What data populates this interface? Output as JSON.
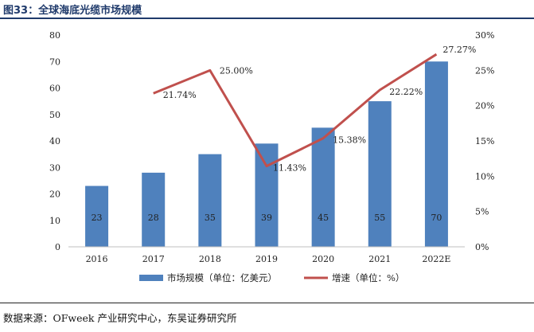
{
  "figure_title": "图33：全球海底光缆市场规模",
  "source": "数据来源：OFweek 产业研究中心，东吴证券研究所",
  "colors": {
    "bar": "#4F81BD",
    "line": "#C0504D",
    "title": "#1f3a6b"
  },
  "chart_data": {
    "type": "bar",
    "categories": [
      "2016",
      "2017",
      "2018",
      "2019",
      "2020",
      "2021",
      "2022E"
    ],
    "series": [
      {
        "name": "市场规模（单位：亿美元）",
        "type": "bar",
        "axis": "left",
        "values": [
          23,
          28,
          35,
          39,
          45,
          55,
          70
        ],
        "labels": [
          "23",
          "28",
          "35",
          "39",
          "45",
          "55",
          "70"
        ]
      },
      {
        "name": "增速（单位：%）",
        "type": "line",
        "axis": "right",
        "values": [
          null,
          21.74,
          25.0,
          11.43,
          15.38,
          22.22,
          27.27
        ],
        "labels": [
          "",
          "21.74%",
          "25.00%",
          "11.43%",
          "15.38%",
          "22.22%",
          "27.27%"
        ]
      }
    ],
    "y_left": {
      "ylim": [
        0,
        80
      ],
      "ticks": [
        "0",
        "10",
        "20",
        "30",
        "40",
        "50",
        "60",
        "70",
        "80"
      ]
    },
    "y_right": {
      "ylim": [
        0,
        30
      ],
      "ticks": [
        "0%",
        "5%",
        "10%",
        "15%",
        "20%",
        "25%",
        "30%"
      ]
    },
    "legend_position": "bottom",
    "grid": false
  }
}
